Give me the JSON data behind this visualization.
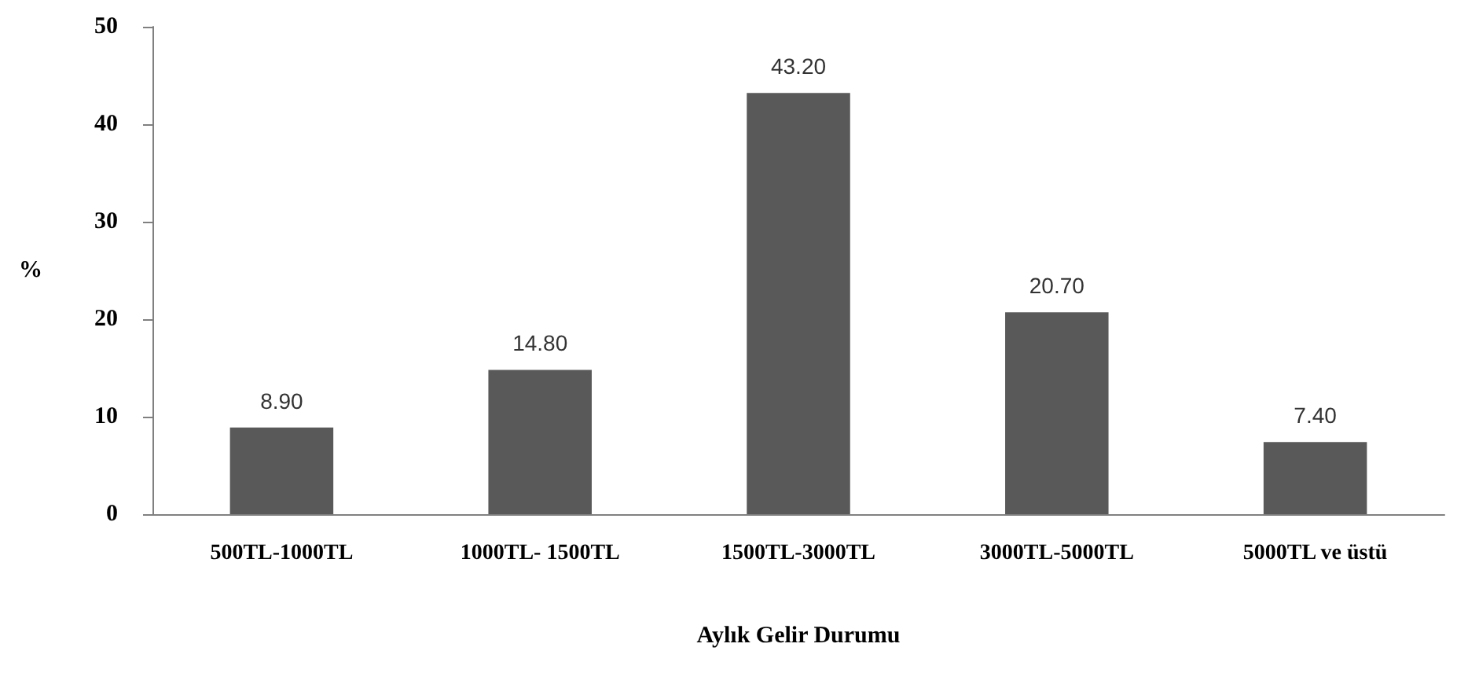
{
  "chart_data": {
    "type": "bar",
    "xlabel": "Aylık Gelir Durumu",
    "ylabel": "%",
    "categories": [
      "500TL-1000TL",
      "1000TL- 1500TL",
      "1500TL-3000TL",
      "3000TL-5000TL",
      "5000TL ve üstü"
    ],
    "values": [
      8.9,
      14.8,
      43.2,
      20.7,
      7.4
    ],
    "value_labels": [
      "8.90",
      "14.80",
      "43.20",
      "20.70",
      "7.40"
    ],
    "color": "#595959",
    "ylim": [
      0,
      50
    ],
    "yticks": [
      0,
      10,
      20,
      30,
      40,
      50
    ]
  }
}
